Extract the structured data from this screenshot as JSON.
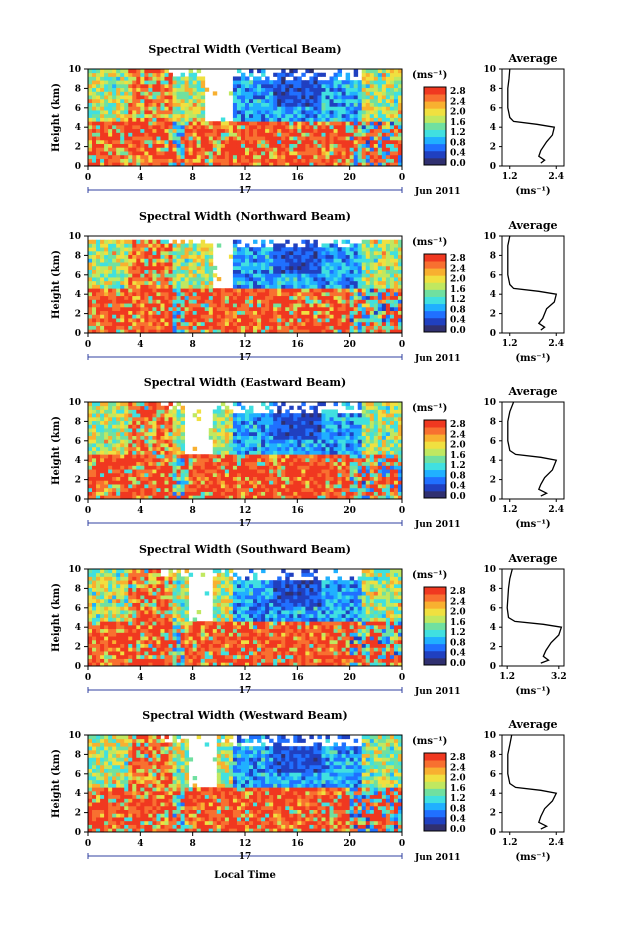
{
  "figure": {
    "xlabel": "Local Time",
    "date_label": "Jun 2011",
    "day_label": "17",
    "units_label": "(ms⁻¹)",
    "profile_title": "Average",
    "profile_xlabel": "(ms⁻¹)"
  },
  "chart_data": [
    {
      "type": "heatmap",
      "title": "Spectral Width (Vertical Beam)",
      "xlabel": "",
      "ylabel": "Height (km)",
      "xticks": [
        "0",
        "4",
        "8",
        "12",
        "16",
        "20",
        "0"
      ],
      "xlim": [
        0,
        24
      ],
      "yticks": [
        "0",
        "2",
        "4",
        "6",
        "8",
        "10"
      ],
      "ylim": [
        0,
        10
      ],
      "colorbar": {
        "ticks": [
          "0.0",
          "0.4",
          "0.8",
          "1.2",
          "1.6",
          "2.0",
          "2.4",
          "2.8"
        ],
        "range": [
          0,
          2.8
        ]
      },
      "gaps": [
        [
          9,
          11,
          4.5,
          10
        ]
      ],
      "upper_top_km": 10,
      "profile": {
        "title": "Average",
        "xticks": [
          "1.2",
          "2.4"
        ],
        "xlim": [
          1.0,
          2.6
        ],
        "yticks": [
          "0",
          "2",
          "4",
          "6",
          "8",
          "10"
        ],
        "points": [
          [
            1.2,
            10
          ],
          [
            1.18,
            9
          ],
          [
            1.15,
            8
          ],
          [
            1.15,
            6
          ],
          [
            1.2,
            5
          ],
          [
            1.3,
            4.6
          ],
          [
            1.9,
            4.3
          ],
          [
            2.35,
            4.0
          ],
          [
            2.3,
            3.2
          ],
          [
            2.15,
            2.5
          ],
          [
            2.0,
            1.6
          ],
          [
            1.95,
            1.0
          ],
          [
            2.1,
            0.6
          ],
          [
            2.0,
            0.3
          ]
        ]
      }
    },
    {
      "type": "heatmap",
      "title": "Spectral Width (Northward Beam)",
      "xlabel": "",
      "ylabel": "Height (km)",
      "xticks": [
        "0",
        "4",
        "8",
        "12",
        "16",
        "20",
        "0"
      ],
      "xlim": [
        0,
        24
      ],
      "yticks": [
        "0",
        "2",
        "4",
        "6",
        "8",
        "10"
      ],
      "ylim": [
        0,
        10
      ],
      "colorbar": {
        "ticks": [
          "0.0",
          "0.4",
          "0.8",
          "1.2",
          "1.6",
          "2.0",
          "2.4",
          "2.8"
        ],
        "range": [
          0,
          2.8
        ]
      },
      "gaps": [
        [
          9.5,
          11,
          4.5,
          10
        ]
      ],
      "upper_top_km": 9.7,
      "profile": {
        "title": "Average",
        "xticks": [
          "1.2",
          "2.4"
        ],
        "xlim": [
          1.0,
          2.6
        ],
        "yticks": [
          "0",
          "2",
          "4",
          "6",
          "8",
          "10"
        ],
        "points": [
          [
            1.2,
            10
          ],
          [
            1.15,
            9
          ],
          [
            1.15,
            8
          ],
          [
            1.15,
            6
          ],
          [
            1.2,
            5
          ],
          [
            1.3,
            4.6
          ],
          [
            1.95,
            4.3
          ],
          [
            2.4,
            4.0
          ],
          [
            2.35,
            3.2
          ],
          [
            2.15,
            2.5
          ],
          [
            2.05,
            1.5
          ],
          [
            1.95,
            1.0
          ],
          [
            2.1,
            0.6
          ],
          [
            2.0,
            0.3
          ]
        ]
      }
    },
    {
      "type": "heatmap",
      "title": "Spectral Width (Eastward Beam)",
      "xlabel": "",
      "ylabel": "Height (km)",
      "xticks": [
        "0",
        "4",
        "8",
        "12",
        "16",
        "20",
        "0"
      ],
      "xlim": [
        0,
        24
      ],
      "yticks": [
        "0",
        "2",
        "4",
        "6",
        "8",
        "10"
      ],
      "ylim": [
        0,
        10
      ],
      "colorbar": {
        "ticks": [
          "0.0",
          "0.4",
          "0.8",
          "1.2",
          "1.6",
          "2.0",
          "2.4",
          "2.8"
        ],
        "range": [
          0,
          2.8
        ]
      },
      "gaps": [
        [
          7.5,
          9.5,
          4.5,
          10
        ]
      ],
      "upper_top_km": 10,
      "profile": {
        "title": "Average",
        "xticks": [
          "1.2",
          "2.4"
        ],
        "xlim": [
          1.0,
          2.6
        ],
        "yticks": [
          "0",
          "2",
          "4",
          "6",
          "8",
          "10"
        ],
        "points": [
          [
            1.3,
            10
          ],
          [
            1.2,
            9
          ],
          [
            1.15,
            8
          ],
          [
            1.15,
            6
          ],
          [
            1.2,
            5
          ],
          [
            1.35,
            4.6
          ],
          [
            2.0,
            4.3
          ],
          [
            2.4,
            4.0
          ],
          [
            2.3,
            3.0
          ],
          [
            2.1,
            2.2
          ],
          [
            2.0,
            1.5
          ],
          [
            1.95,
            1.0
          ],
          [
            2.15,
            0.6
          ],
          [
            2.0,
            0.3
          ]
        ]
      }
    },
    {
      "type": "heatmap",
      "title": "Spectral Width (Southward Beam)",
      "xlabel": "",
      "ylabel": "Height (km)",
      "xticks": [
        "0",
        "4",
        "8",
        "12",
        "16",
        "20",
        "0"
      ],
      "xlim": [
        0,
        24
      ],
      "yticks": [
        "0",
        "2",
        "4",
        "6",
        "8",
        "10"
      ],
      "ylim": [
        0,
        10
      ],
      "colorbar": {
        "ticks": [
          "0.0",
          "0.4",
          "0.8",
          "1.2",
          "1.6",
          "2.0",
          "2.4",
          "2.8"
        ],
        "range": [
          0,
          2.8
        ]
      },
      "gaps": [
        [
          7.8,
          9.5,
          4.5,
          10
        ]
      ],
      "upper_top_km": 10,
      "profile": {
        "title": "Average",
        "xticks": [
          "1.2",
          "3.2"
        ],
        "xlim": [
          1.0,
          3.4
        ],
        "yticks": [
          "0",
          "2",
          "4",
          "6",
          "8",
          "10"
        ],
        "points": [
          [
            1.4,
            10
          ],
          [
            1.3,
            9
          ],
          [
            1.25,
            8
          ],
          [
            1.2,
            6
          ],
          [
            1.25,
            5
          ],
          [
            1.5,
            4.6
          ],
          [
            2.6,
            4.3
          ],
          [
            3.3,
            4.0
          ],
          [
            3.2,
            3.2
          ],
          [
            2.9,
            2.4
          ],
          [
            2.7,
            1.6
          ],
          [
            2.6,
            1.0
          ],
          [
            2.8,
            0.6
          ],
          [
            2.5,
            0.3
          ]
        ]
      }
    },
    {
      "type": "heatmap",
      "title": "Spectral Width (Westward Beam)",
      "xlabel": "Local Time",
      "ylabel": "Height (km)",
      "xticks": [
        "0",
        "4",
        "8",
        "12",
        "16",
        "20",
        "0"
      ],
      "xlim": [
        0,
        24
      ],
      "yticks": [
        "0",
        "2",
        "4",
        "6",
        "8",
        "10"
      ],
      "ylim": [
        0,
        10
      ],
      "colorbar": {
        "ticks": [
          "0.0",
          "0.4",
          "0.8",
          "1.2",
          "1.6",
          "2.0",
          "2.4",
          "2.8"
        ],
        "range": [
          0,
          2.8
        ]
      },
      "gaps": [
        [
          7.8,
          9.8,
          4.5,
          10
        ]
      ],
      "upper_top_km": 10,
      "profile": {
        "title": "Average",
        "xticks": [
          "1.2",
          "2.4"
        ],
        "xlim": [
          1.0,
          2.6
        ],
        "yticks": [
          "0",
          "2",
          "4",
          "6",
          "8",
          "10"
        ],
        "points": [
          [
            1.25,
            10
          ],
          [
            1.2,
            9
          ],
          [
            1.15,
            8
          ],
          [
            1.15,
            6
          ],
          [
            1.2,
            5
          ],
          [
            1.35,
            4.6
          ],
          [
            2.0,
            4.3
          ],
          [
            2.4,
            4.0
          ],
          [
            2.3,
            3.2
          ],
          [
            2.1,
            2.4
          ],
          [
            2.0,
            1.6
          ],
          [
            1.95,
            1.0
          ],
          [
            2.15,
            0.6
          ],
          [
            2.0,
            0.3
          ]
        ]
      }
    }
  ],
  "colors": {
    "scale": [
      "#303070",
      "#2040c0",
      "#2070ff",
      "#20b0ff",
      "#40e0e0",
      "#70e0a0",
      "#c0e860",
      "#f0e040",
      "#f8b030",
      "#f87030",
      "#f03820"
    ]
  }
}
